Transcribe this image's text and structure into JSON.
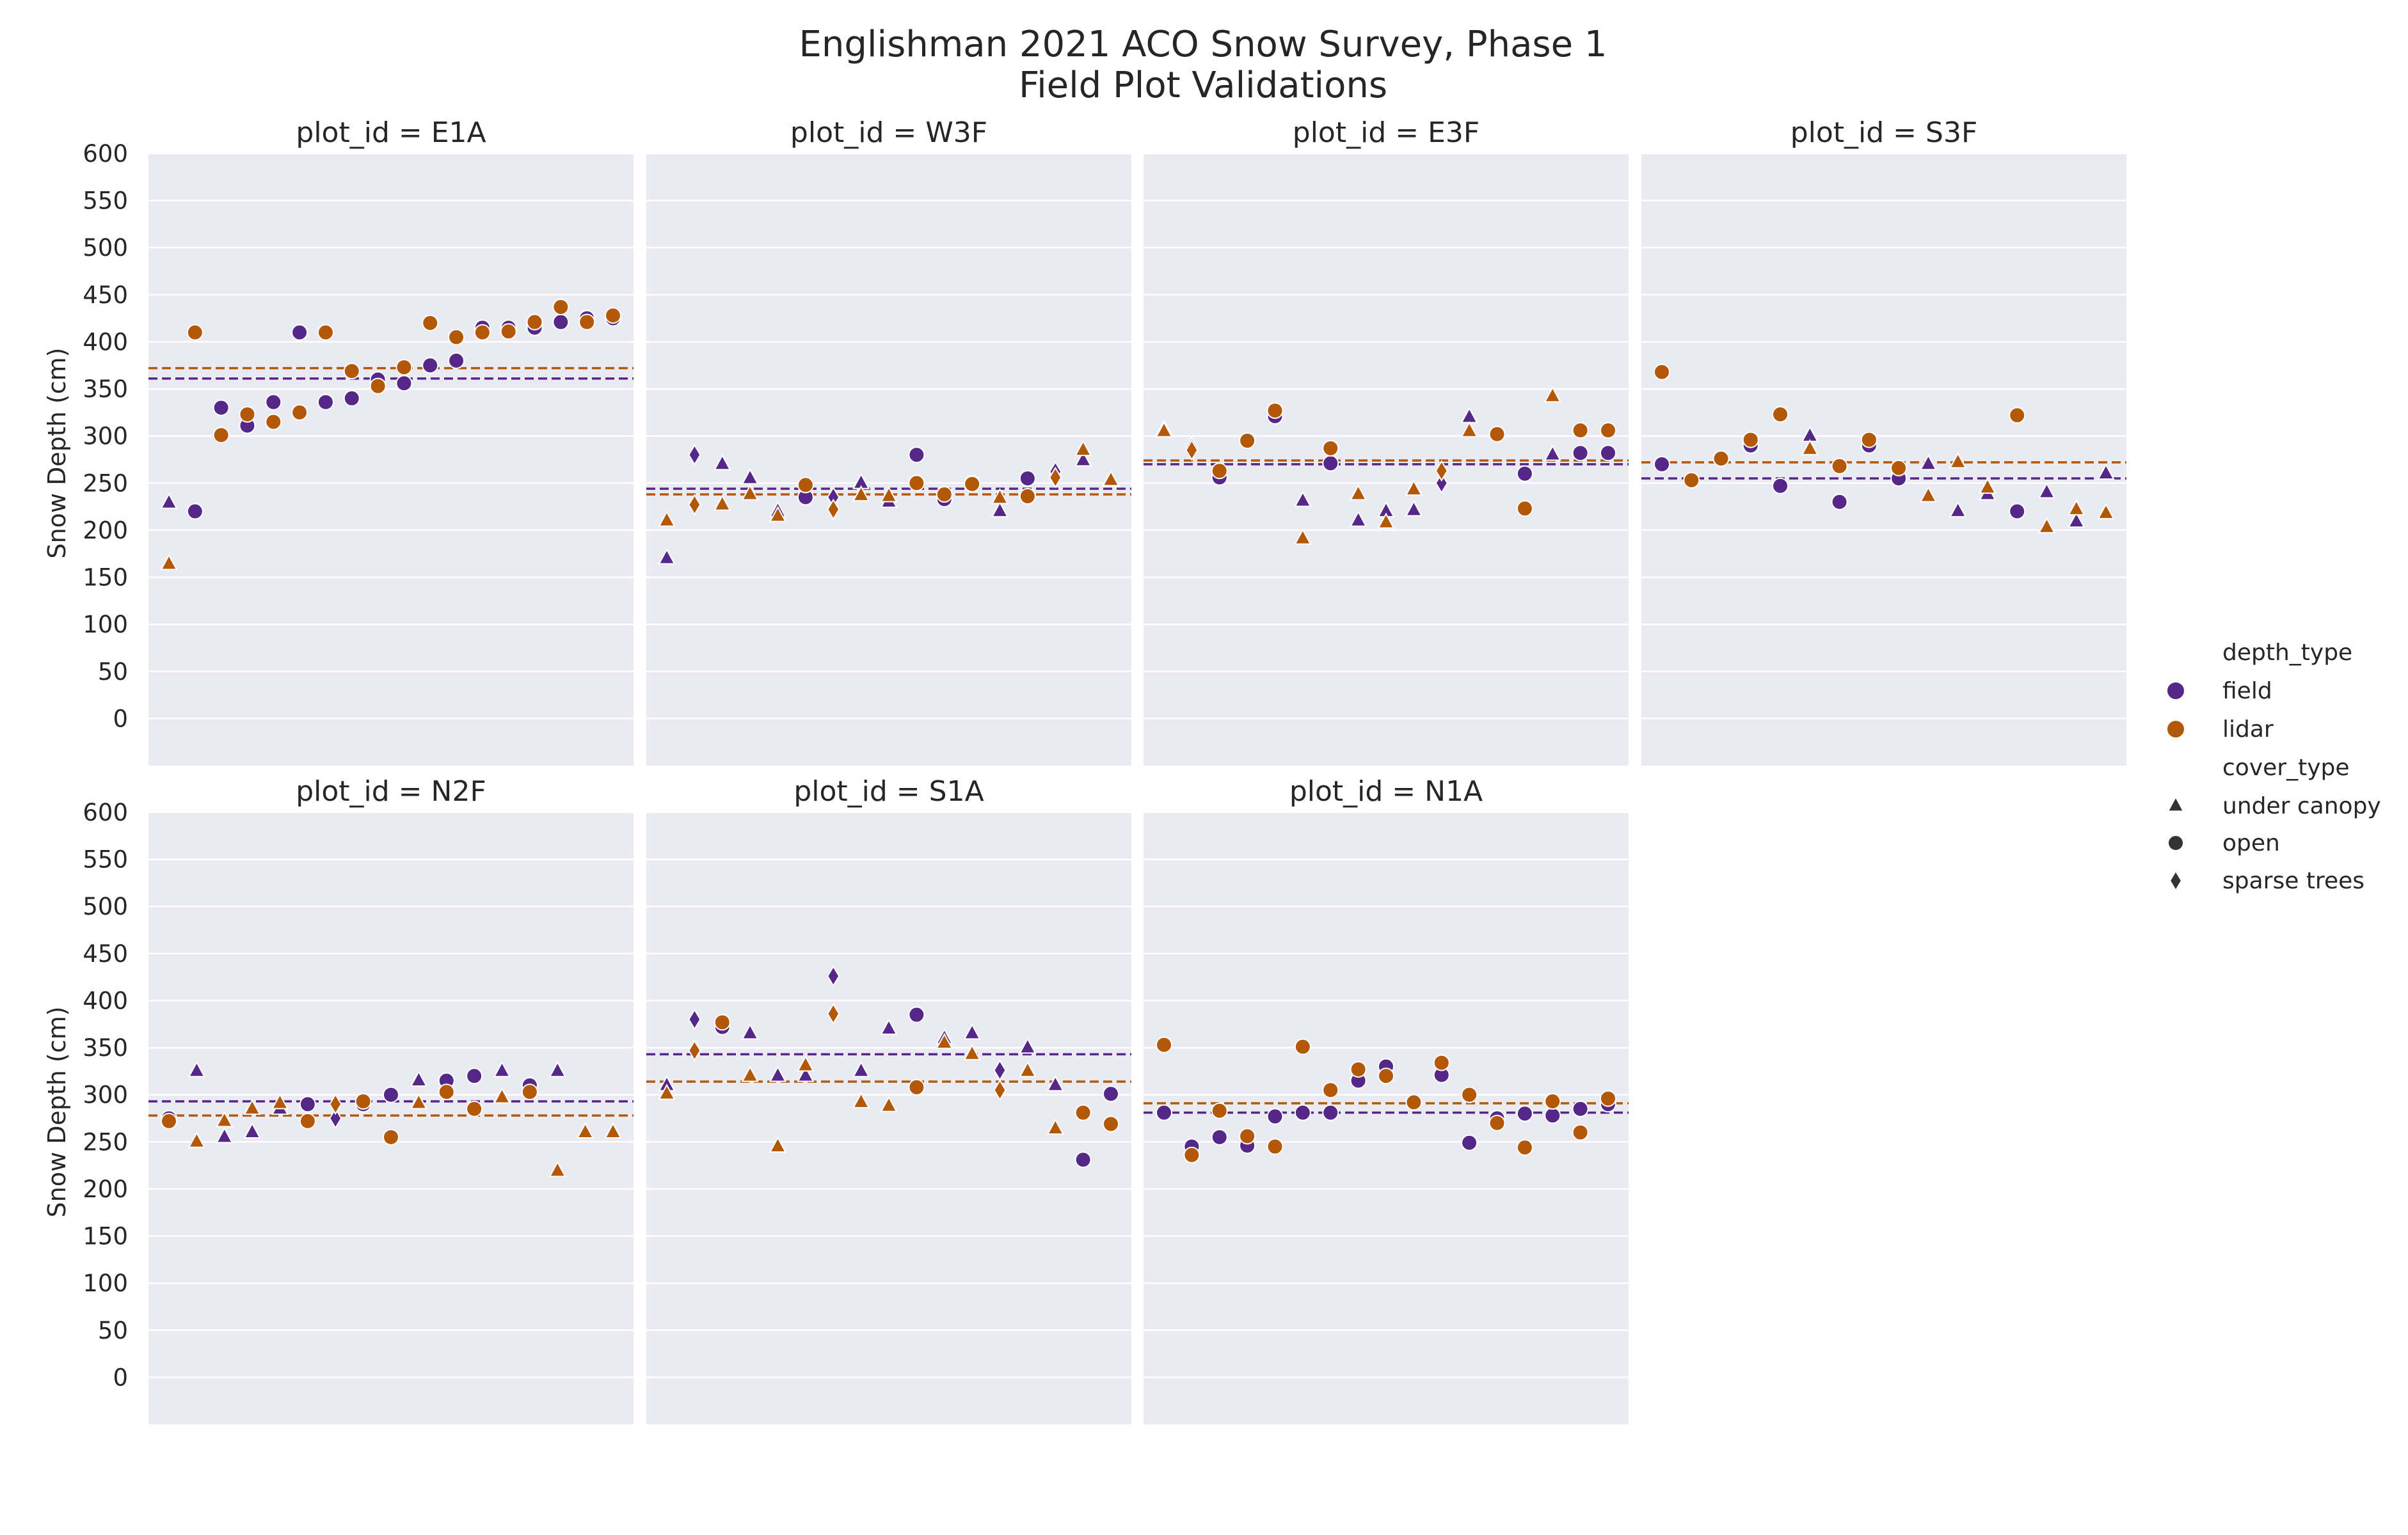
{
  "chart_data": {
    "type": "scatter",
    "title": "Englishman 2021 ACO Snow Survey, Phase 1",
    "subtitle": "Field Plot Validations",
    "ylabel": "Snow Depth (cm)",
    "ylim": [
      -50,
      600
    ],
    "yticks": [
      0,
      50,
      100,
      150,
      200,
      250,
      300,
      350,
      400,
      450,
      500,
      550,
      600
    ],
    "grid": true,
    "legend_placement": "right",
    "colors": {
      "field": "#542788",
      "lidar": "#b35806",
      "panel_bg": "#eaeaf2",
      "grid": "#ffffff",
      "text": "#262626"
    },
    "legend": {
      "hue_title": "depth_type",
      "hue_entries": [
        "field",
        "lidar"
      ],
      "style_title": "cover_type",
      "style_entries": [
        {
          "label": "under canopy",
          "marker": "triangle"
        },
        {
          "label": "open",
          "marker": "circle"
        },
        {
          "label": "sparse trees",
          "marker": "diamond"
        }
      ]
    },
    "marker_codes": {
      "t": "under canopy",
      "o": "open",
      "d": "sparse trees"
    },
    "panels": [
      {
        "title": "plot_id = E1A",
        "field_mean": 361,
        "lidar_mean": 372,
        "markers": [
          "t",
          "o",
          "o",
          "o",
          "o",
          "o",
          "o",
          "o",
          "o",
          "o",
          "o",
          "o",
          "o",
          "o",
          "o",
          "o",
          "o",
          "o"
        ],
        "field": [
          229,
          220,
          330,
          311,
          336,
          410,
          336,
          340,
          360,
          356,
          375,
          380,
          415,
          415,
          415,
          421,
          425,
          425
        ],
        "lidar": [
          164,
          410,
          301,
          323,
          315,
          325,
          410,
          369,
          353,
          373,
          420,
          405,
          410,
          411,
          421,
          437,
          421,
          428
        ]
      },
      {
        "title": "plot_id = W3F",
        "field_mean": 244,
        "lidar_mean": 238,
        "markers": [
          "t",
          "d",
          "t",
          "t",
          "t",
          "o",
          "d",
          "t",
          "t",
          "o",
          "o",
          "o",
          "t",
          "o",
          "d",
          "t",
          "t"
        ],
        "field": [
          170,
          280,
          270,
          255,
          220,
          235,
          235,
          250,
          230,
          280,
          233,
          250,
          220,
          255,
          262,
          274,
          252
        ],
        "lidar": [
          210,
          227,
          227,
          238,
          215,
          248,
          222,
          237,
          236,
          250,
          238,
          249,
          234,
          236,
          256,
          285,
          253
        ]
      },
      {
        "title": "plot_id = E3F",
        "field_mean": 270,
        "lidar_mean": 274,
        "markers": [
          "t",
          "d",
          "o",
          "o",
          "o",
          "t",
          "o",
          "t",
          "t",
          "t",
          "d",
          "t",
          "o",
          "o",
          "t",
          "o",
          "o"
        ],
        "field": [
          307,
          288,
          256,
          295,
          321,
          231,
          271,
          210,
          220,
          221,
          250,
          320,
          302,
          260,
          280,
          282,
          282
        ],
        "lidar": [
          305,
          285,
          263,
          295,
          327,
          191,
          287,
          238,
          208,
          243,
          263,
          305,
          302,
          223,
          342,
          306,
          306
        ],
        "sparse_indices_note": ""
      },
      {
        "title": "plot_id = S3F",
        "field_mean": 255,
        "lidar_mean": 272,
        "markers": [
          "o",
          "o",
          "o",
          "o",
          "o",
          "t",
          "o",
          "o",
          "o",
          "t",
          "t",
          "t",
          "o",
          "t",
          "t",
          "t"
        ],
        "field": [
          270,
          253,
          276,
          290,
          247,
          300,
          230,
          290,
          255,
          270,
          220,
          238,
          220,
          240,
          209,
          260
        ],
        "lidar": [
          368,
          253,
          276,
          296,
          323,
          286,
          268,
          296,
          266,
          236,
          272,
          245,
          322,
          203,
          222,
          218
        ]
      },
      {
        "title": "plot_id = N2F",
        "field_mean": 293,
        "lidar_mean": 278,
        "markers": [
          "o",
          "t",
          "t",
          "t",
          "t",
          "o",
          "d",
          "o",
          "o",
          "t",
          "o",
          "o",
          "t",
          "o",
          "t",
          "t",
          "t"
        ],
        "field": [
          275,
          325,
          255,
          260,
          285,
          290,
          275,
          290,
          300,
          315,
          315,
          320,
          325,
          310,
          325,
          260,
          260
        ],
        "lidar": [
          272,
          250,
          272,
          285,
          291,
          272,
          290,
          293,
          255,
          291,
          303,
          285,
          297,
          303,
          219,
          260,
          260
        ]
      },
      {
        "title": "plot_id = S1A",
        "field_mean": 343,
        "lidar_mean": 314,
        "markers": [
          "t",
          "d",
          "o",
          "t",
          "t",
          "t",
          "d",
          "t",
          "t",
          "o",
          "t",
          "t",
          "d",
          "t",
          "t",
          "o",
          "o"
        ],
        "field": [
          310,
          380,
          372,
          365,
          320,
          320,
          426,
          325,
          370,
          385,
          360,
          365,
          326,
          350,
          310,
          231,
          301
        ],
        "lidar": [
          301,
          347,
          377,
          320,
          245,
          331,
          386,
          292,
          288,
          308,
          355,
          343,
          305,
          325,
          264,
          281,
          269
        ]
      },
      {
        "title": "plot_id = N1A",
        "field_mean": 281,
        "lidar_mean": 291,
        "markers": [
          "o",
          "o",
          "o",
          "o",
          "o",
          "o",
          "o",
          "o",
          "o",
          "o",
          "o",
          "o",
          "o",
          "o",
          "o",
          "o",
          "o"
        ],
        "field": [
          281,
          245,
          255,
          246,
          277,
          281,
          281,
          315,
          330,
          292,
          321,
          249,
          275,
          280,
          278,
          285,
          290
        ],
        "lidar": [
          353,
          236,
          283,
          256,
          245,
          351,
          305,
          327,
          320,
          292,
          334,
          300,
          270,
          244,
          293,
          260,
          296
        ]
      }
    ]
  }
}
